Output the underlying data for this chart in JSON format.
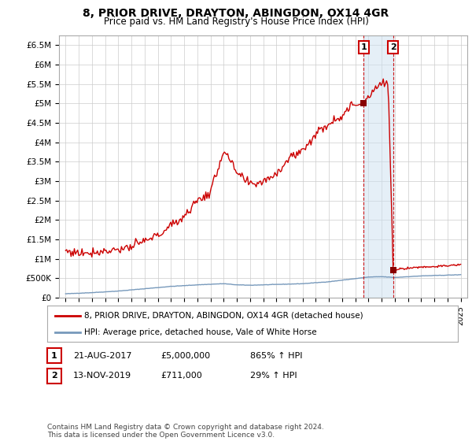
{
  "title": "8, PRIOR DRIVE, DRAYTON, ABINGDON, OX14 4GR",
  "subtitle": "Price paid vs. HM Land Registry's House Price Index (HPI)",
  "title_fontsize": 10,
  "subtitle_fontsize": 8.5,
  "ylim": [
    0,
    6750000
  ],
  "xlim_start": 1994.5,
  "xlim_end": 2025.5,
  "yticks": [
    0,
    500000,
    1000000,
    1500000,
    2000000,
    2500000,
    3000000,
    3500000,
    4000000,
    4500000,
    5000000,
    5500000,
    6000000,
    6500000
  ],
  "ytick_labels": [
    "£0",
    "£500K",
    "£1M",
    "£1.5M",
    "£2M",
    "£2.5M",
    "£3M",
    "£3.5M",
    "£4M",
    "£4.5M",
    "£5M",
    "£5.5M",
    "£6M",
    "£6.5M"
  ],
  "transaction1_date": 2017.64,
  "transaction1_price": 5000000,
  "transaction2_date": 2019.87,
  "transaction2_price": 711000,
  "legend_line1": "8, PRIOR DRIVE, DRAYTON, ABINGDON, OX14 4GR (detached house)",
  "legend_line2": "HPI: Average price, detached house, Vale of White Horse",
  "table_row1": [
    "1",
    "21-AUG-2017",
    "£5,000,000",
    "865% ↑ HPI"
  ],
  "table_row2": [
    "2",
    "13-NOV-2019",
    "£711,000",
    "29% ↑ HPI"
  ],
  "footer": "Contains HM Land Registry data © Crown copyright and database right 2024.\nThis data is licensed under the Open Government Licence v3.0.",
  "line_color_red": "#cc0000",
  "line_color_blue": "#7799bb",
  "highlight_box_color": "#cce0f0",
  "marker_color": "#880000",
  "grid_color": "#cccccc",
  "background_color": "#ffffff"
}
